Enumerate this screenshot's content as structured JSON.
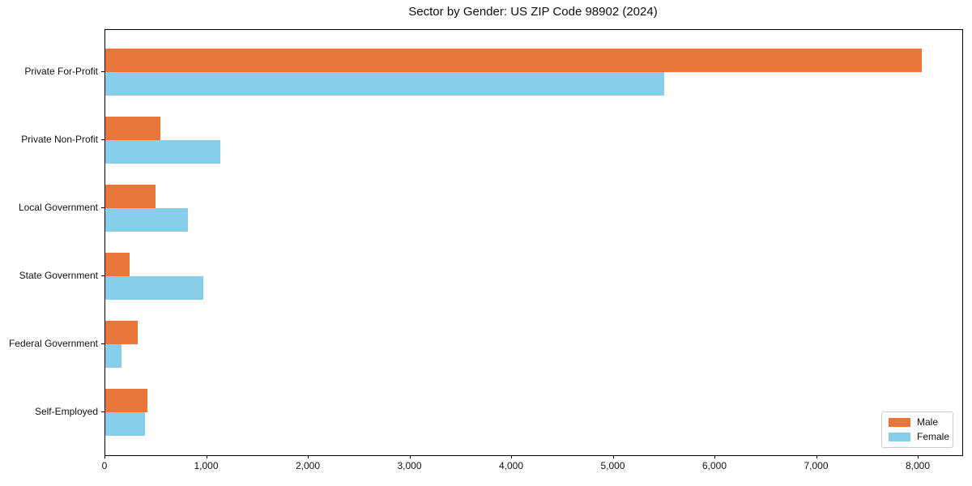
{
  "chart_data": {
    "type": "bar",
    "orientation": "horizontal",
    "title": "Sector by Gender: US ZIP Code 98902 (2024)",
    "categories": [
      "Private For-Profit",
      "Private Non-Profit",
      "Local Government",
      "State Government",
      "Federal Government",
      "Self-Employed"
    ],
    "series": [
      {
        "name": "Male",
        "color": "#E8763B",
        "values": [
          8030,
          545,
          495,
          240,
          315,
          410
        ]
      },
      {
        "name": "Female",
        "color": "#87CEEB",
        "values": [
          5500,
          1135,
          810,
          960,
          160,
          390
        ]
      }
    ],
    "xlabel": "",
    "ylabel": "",
    "xlim": [
      0,
      8430
    ],
    "x_ticks": [
      0,
      1000,
      2000,
      3000,
      4000,
      5000,
      6000,
      7000,
      8000
    ],
    "x_tick_labels": [
      "0",
      "1,000",
      "2,000",
      "3,000",
      "4,000",
      "5,000",
      "6,000",
      "7,000",
      "8,000"
    ],
    "grid": false,
    "legend_position": "lower right"
  }
}
